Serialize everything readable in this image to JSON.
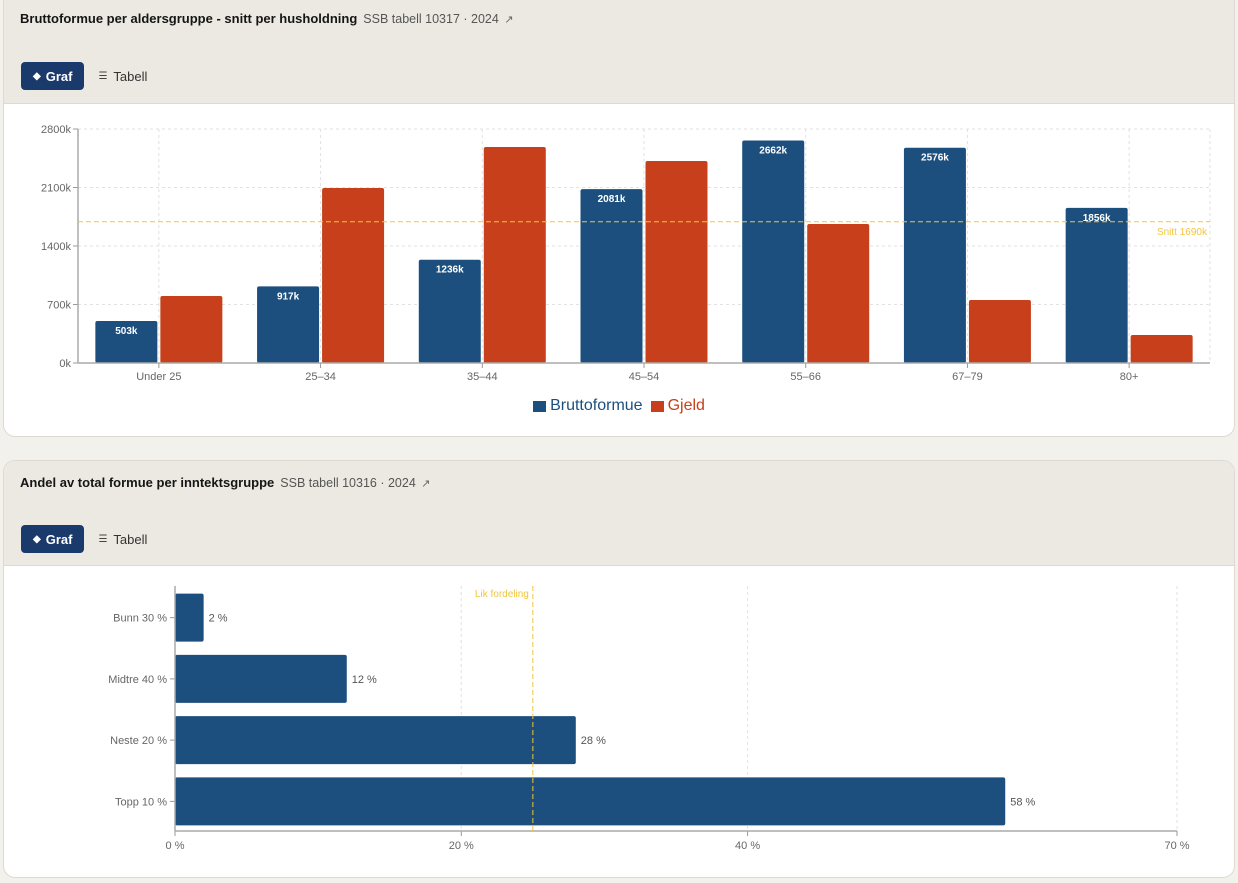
{
  "cards": [
    {
      "title": "Bruttoformue per aldersgruppe - snitt per husholdning",
      "source": "SSB tabell 10317 · 2024",
      "external_link_icon": "↗",
      "toggle": {
        "graf_label": "Graf",
        "graf_icon": "◆",
        "tabell_label": "Tabell",
        "tabell_icon": "☰",
        "active": "Graf"
      }
    },
    {
      "title": "Andel av total formue per inntektsgruppe",
      "source": "SSB tabell 10316 · 2024",
      "external_link_icon": "↗",
      "toggle": {
        "graf_label": "Graf",
        "graf_icon": "◆",
        "tabell_label": "Tabell",
        "tabell_icon": "☰",
        "active": "Graf"
      }
    }
  ],
  "colors": {
    "brutto": "#1c4f7e",
    "gjeld": "#c7401b",
    "reference": "#f2c53d",
    "button_active": "#1a3a6b"
  },
  "chart_data": [
    {
      "type": "bar",
      "title": "Bruttoformue per aldersgruppe - snitt per husholdning",
      "categories": [
        "Under 25",
        "25–34",
        "35–44",
        "45–54",
        "55–66",
        "67–79",
        "80+"
      ],
      "series": [
        {
          "name": "Bruttoformue",
          "values": [
            503,
            917,
            1236,
            2081,
            2662,
            2576,
            1856
          ],
          "labels": [
            "503k",
            "917k",
            "1236k",
            "2081k",
            "2662k",
            "2576k",
            "1856k"
          ]
        },
        {
          "name": "Gjeld",
          "values": [
            802,
            2094,
            2585,
            2417,
            1663,
            754,
            335
          ]
        }
      ],
      "yticks": [
        0,
        700,
        1400,
        2100,
        2800
      ],
      "ytick_labels": [
        "0k",
        "700k",
        "1400k",
        "2100k",
        "2800k"
      ],
      "ylim": [
        0,
        2800
      ],
      "unit": "k",
      "reference_line": {
        "value": 1690,
        "label": "Snitt 1690k"
      },
      "legend": [
        "Bruttoformue",
        "Gjeld"
      ],
      "legend_position": "bottom-center",
      "grid": true,
      "xlabel": "",
      "ylabel": ""
    },
    {
      "type": "bar",
      "orientation": "horizontal",
      "title": "Andel av total formue per inntektsgruppe",
      "categories": [
        "Bunn 30 %",
        "Midtre 40 %",
        "Neste 20 %",
        "Topp 10 %"
      ],
      "values": [
        2,
        12,
        28,
        58
      ],
      "value_labels": [
        "2 %",
        "12 %",
        "28 %",
        "58 %"
      ],
      "xticks": [
        0,
        20,
        40,
        70
      ],
      "xtick_labels": [
        "0 %",
        "20 %",
        "40 %",
        "70 %"
      ],
      "xlim": [
        0,
        70
      ],
      "reference_line": {
        "value": 25,
        "label": "Lik fordeling"
      },
      "grid": true,
      "xlabel": "",
      "ylabel": ""
    }
  ]
}
